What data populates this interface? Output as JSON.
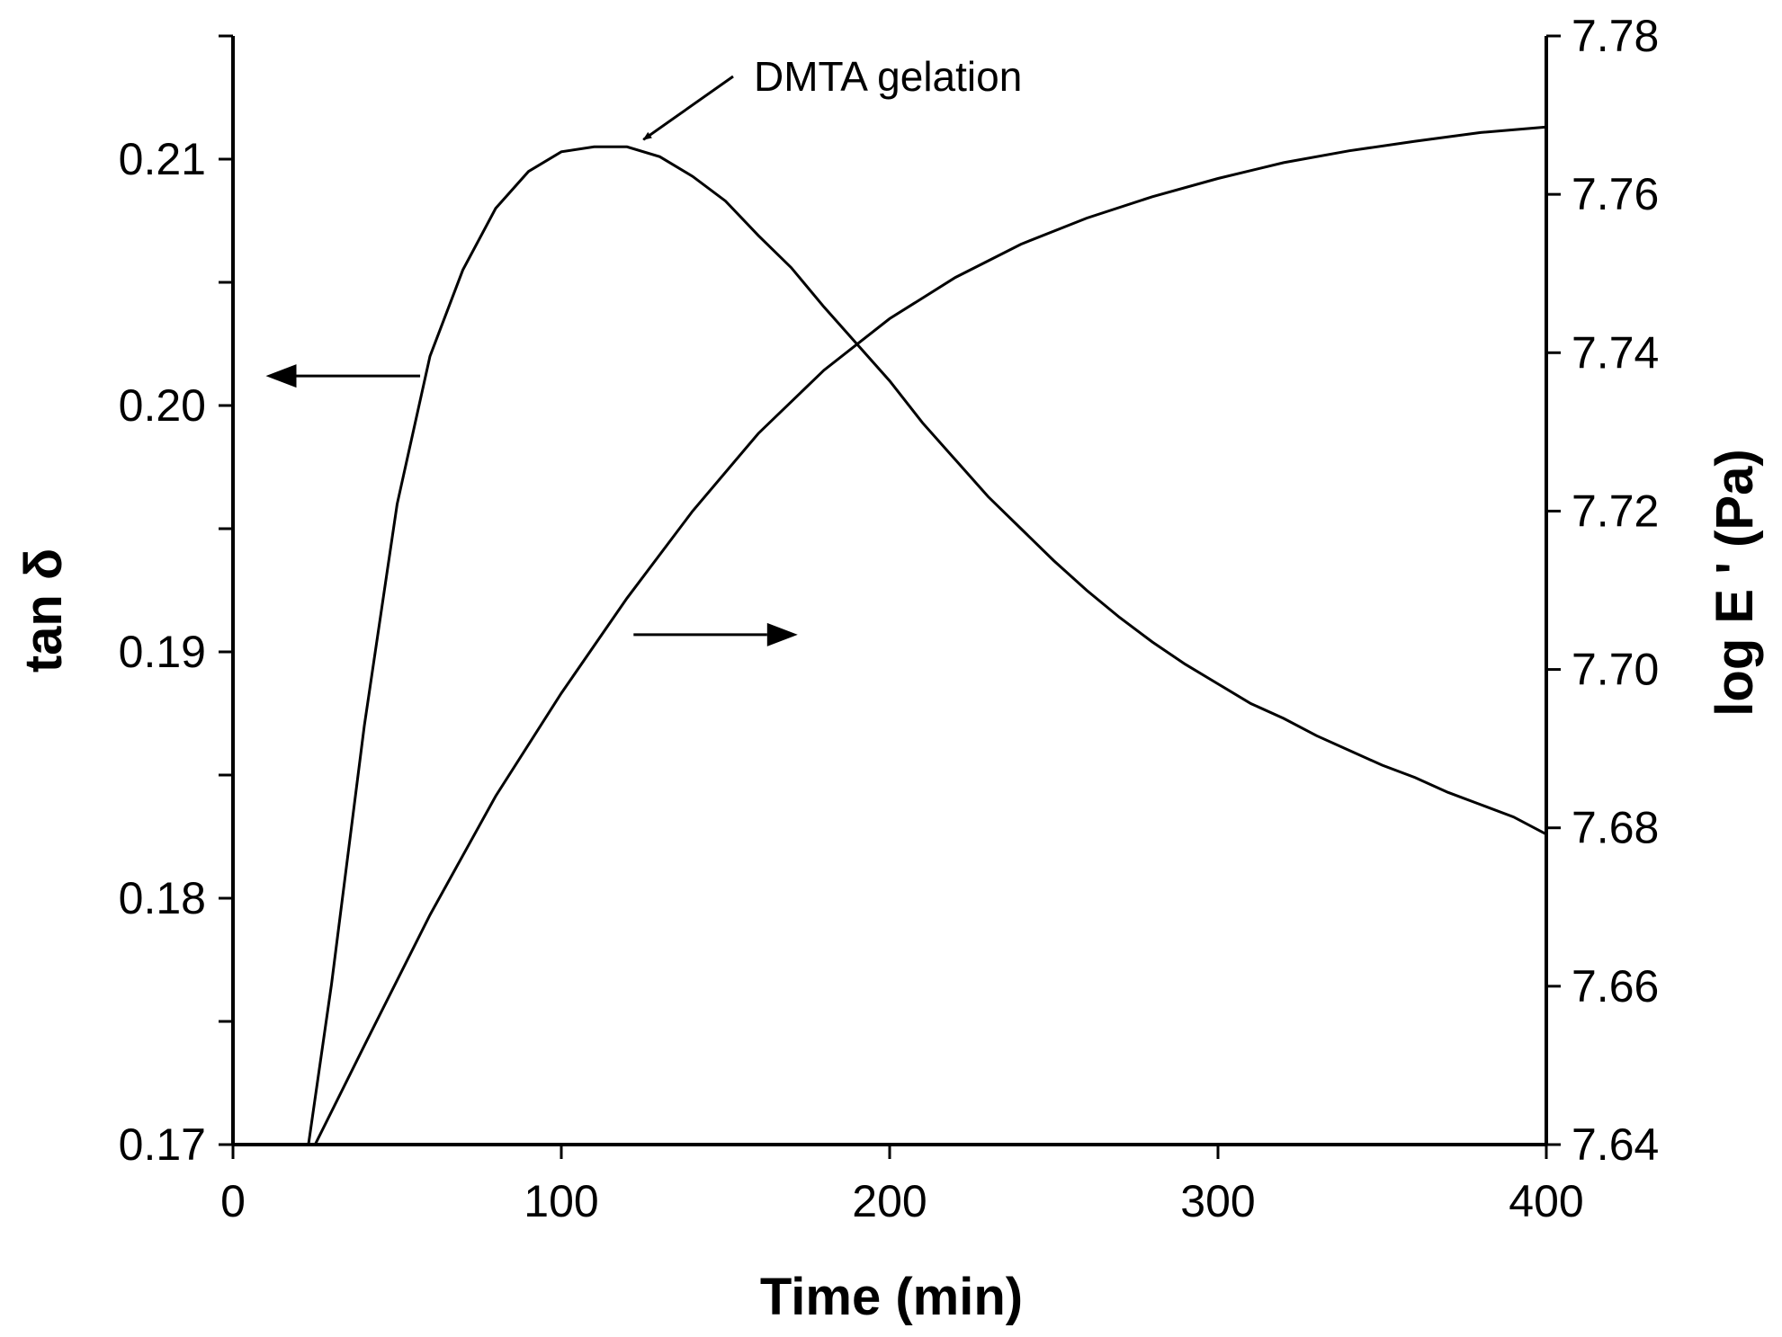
{
  "chart_data": {
    "type": "line",
    "title": "",
    "xlabel": "Time (min)",
    "ylabel_left": "tan δ",
    "ylabel_right": "log E ' (Pa)",
    "xlim": [
      0,
      400
    ],
    "ylim_left": [
      0.17,
      0.215
    ],
    "ylim_right": [
      7.64,
      7.78
    ],
    "x_ticks": [
      "0",
      "100",
      "200",
      "300",
      "400"
    ],
    "y_left_ticks": [
      "0.17",
      "0.18",
      "0.19",
      "0.20",
      "0.21"
    ],
    "y_right_ticks": [
      "7.64",
      "7.66",
      "7.68",
      "7.70",
      "7.72",
      "7.74",
      "7.76",
      "7.78"
    ],
    "series": [
      {
        "name": "tan δ",
        "axis": "left",
        "x": [
          23,
          30,
          40,
          50,
          60,
          70,
          80,
          90,
          100,
          110,
          120,
          130,
          140,
          150,
          160,
          170,
          180,
          190,
          200,
          210,
          220,
          230,
          240,
          250,
          260,
          270,
          280,
          290,
          300,
          310,
          320,
          330,
          340,
          350,
          360,
          370,
          380,
          390,
          400
        ],
        "y": [
          0.17,
          0.1765,
          0.187,
          0.196,
          0.202,
          0.2055,
          0.208,
          0.2095,
          0.2103,
          0.2105,
          0.2105,
          0.2101,
          0.2093,
          0.2083,
          0.2069,
          0.2056,
          0.204,
          0.2025,
          0.201,
          0.1993,
          0.1978,
          0.1963,
          0.195,
          0.1937,
          0.1925,
          0.1914,
          0.1904,
          0.1895,
          0.1887,
          0.1879,
          0.1873,
          0.1866,
          0.186,
          0.1854,
          0.1849,
          0.1843,
          0.1838,
          0.1833,
          0.1826
        ]
      },
      {
        "name": "log E'",
        "axis": "right",
        "x": [
          25,
          40,
          60,
          80,
          100,
          120,
          140,
          160,
          180,
          200,
          220,
          240,
          260,
          280,
          300,
          320,
          340,
          360,
          380,
          400
        ],
        "y": [
          7.64,
          7.6525,
          7.669,
          7.684,
          7.697,
          7.709,
          7.72,
          7.7298,
          7.7378,
          7.7443,
          7.7495,
          7.7537,
          7.757,
          7.7597,
          7.762,
          7.764,
          7.7655,
          7.7667,
          7.7678,
          7.7685
        ]
      }
    ],
    "annotations": [
      {
        "text": "DMTA gelation",
        "points_to": {
          "x": 125,
          "axis": "left",
          "y": 0.2105
        }
      }
    ],
    "direction_arrows": [
      {
        "points_to": "left axis",
        "at": {
          "x": 57,
          "y_left": 0.2012
        },
        "to_x": 10
      },
      {
        "points_to": "right axis",
        "at": {
          "x": 122,
          "y_left": 0.1907
        },
        "to_x": 172
      }
    ],
    "grid": false,
    "legend": "none"
  }
}
